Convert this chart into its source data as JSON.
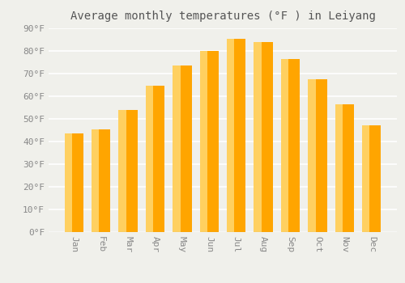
{
  "title": "Average monthly temperatures (°F ) in Leiyang",
  "months": [
    "Jan",
    "Feb",
    "Mar",
    "Apr",
    "May",
    "Jun",
    "Jul",
    "Aug",
    "Sep",
    "Oct",
    "Nov",
    "Dec"
  ],
  "values": [
    43.5,
    45.5,
    54.0,
    64.5,
    73.5,
    80.0,
    85.5,
    84.0,
    76.5,
    67.5,
    56.5,
    47.0
  ],
  "bar_color_main": "#FFA500",
  "bar_color_light": "#FFD060",
  "ylim": [
    0,
    90
  ],
  "yticks": [
    0,
    10,
    20,
    30,
    40,
    50,
    60,
    70,
    80,
    90
  ],
  "ytick_labels": [
    "0°F",
    "10°F",
    "20°F",
    "30°F",
    "40°F",
    "50°F",
    "60°F",
    "70°F",
    "80°F",
    "90°F"
  ],
  "background_color": "#f0f0eb",
  "grid_color": "#ffffff",
  "title_fontsize": 10,
  "tick_fontsize": 8,
  "tick_font_color": "#888888",
  "title_color": "#555555",
  "bar_width": 0.7,
  "figsize": [
    5.0,
    3.5
  ],
  "dpi": 100
}
